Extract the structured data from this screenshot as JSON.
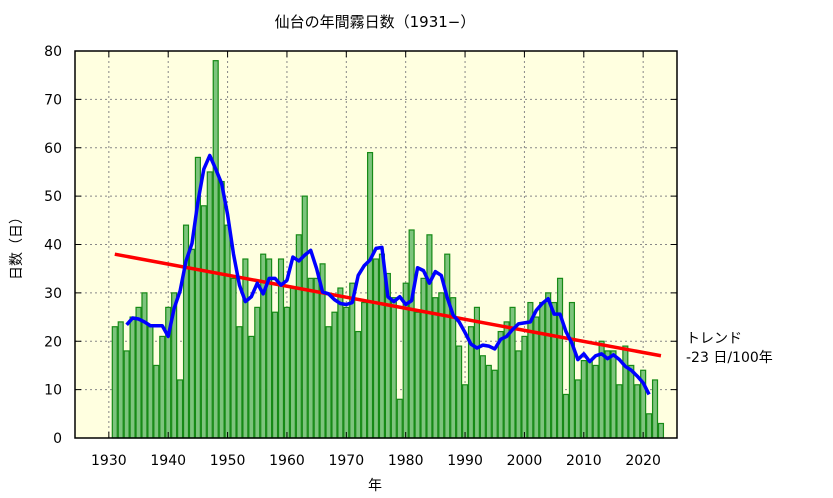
{
  "chart_data": {
    "type": "bar",
    "title": "仙台の年間霧日数（1931−）",
    "xlabel": "年",
    "ylabel": "日数（日）",
    "xlim": [
      1924.3,
      2025.7
    ],
    "ylim": [
      0,
      80
    ],
    "xticks": [
      1930,
      1940,
      1950,
      1960,
      1970,
      1980,
      1990,
      2000,
      2010,
      2020
    ],
    "yticks": [
      0,
      10,
      20,
      30,
      40,
      50,
      60,
      70,
      80
    ],
    "grid": true,
    "years_start": 1931,
    "values": [
      23,
      24,
      18,
      25,
      27,
      30,
      23,
      15,
      21,
      27,
      30,
      12,
      44,
      39,
      58,
      48,
      55,
      78,
      53,
      44,
      33,
      23,
      37,
      21,
      27,
      38,
      37,
      26,
      37,
      27,
      31,
      42,
      50,
      33,
      33,
      36,
      23,
      26,
      31,
      27,
      32,
      22,
      28,
      59,
      37,
      38,
      34,
      29,
      8,
      32,
      43,
      26,
      33,
      42,
      29,
      30,
      38,
      29,
      19,
      11,
      23,
      27,
      17,
      15,
      14,
      22,
      24,
      27,
      18,
      21,
      28,
      25,
      28,
      30,
      28,
      33,
      9,
      28,
      12,
      16,
      16,
      15,
      20,
      18,
      18,
      11,
      19,
      15,
      11,
      14,
      5,
      12,
      3
    ],
    "moving_average_window": 5,
    "trend": {
      "start": [
        1931,
        38
      ],
      "end": [
        2023,
        17
      ],
      "label": "トレンド",
      "rate": "-23 日/100年"
    },
    "colors": {
      "bar_fill": "#7dc47d",
      "bar_edge": "#168a16",
      "moving_average": "#0000ff",
      "trend": "#ff0000",
      "plot_bg": "#ffffe0"
    }
  }
}
